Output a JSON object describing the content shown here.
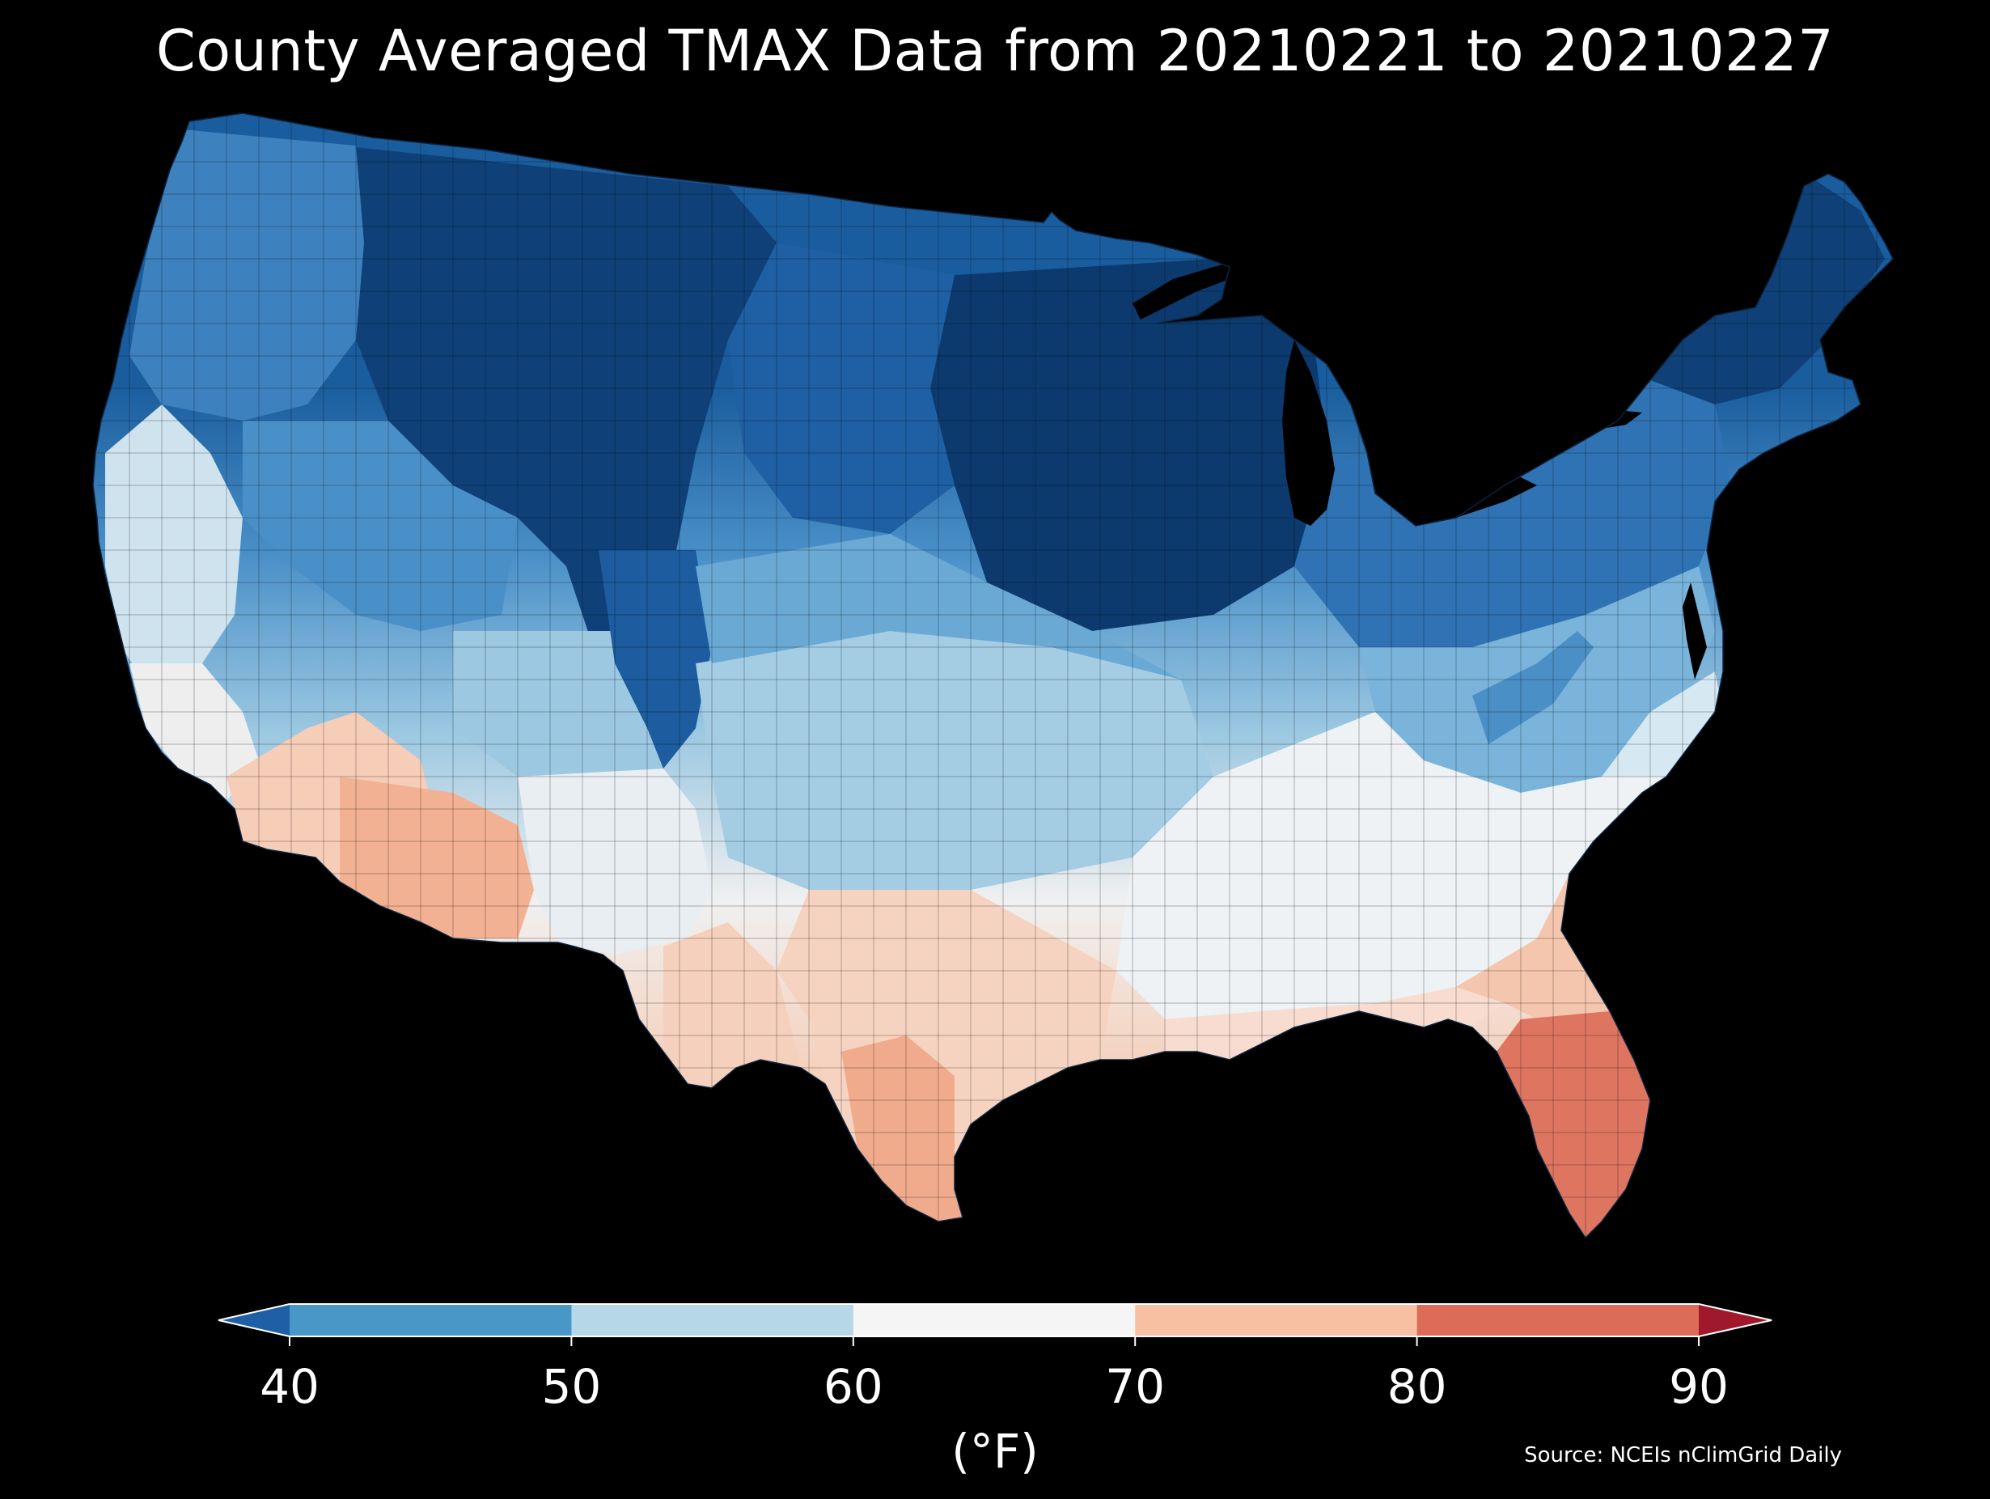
{
  "title": "County Averaged TMAX Data from 20210221 to 20210227",
  "legend": {
    "ticks": [
      "40",
      "50",
      "60",
      "70",
      "80",
      "90"
    ],
    "unit": "(°F)",
    "bins": [
      {
        "range": "< 40",
        "color": "#1f5fa6"
      },
      {
        "range": "40-50",
        "color": "#4997c6"
      },
      {
        "range": "50-60",
        "color": "#b6d7e8"
      },
      {
        "range": "60-70",
        "color": "#f5f5f5"
      },
      {
        "range": "70-80",
        "color": "#f8c0a2"
      },
      {
        "range": "80-90",
        "color": "#dc6b58"
      },
      {
        "range": "> 90",
        "color": "#a0182c"
      }
    ]
  },
  "source": "Source: NCEIs nClimGrid Daily",
  "map": {
    "region": "contiguous-united-states",
    "variable": "TMAX",
    "colors": {
      "deep": "#0d3d70",
      "dark": "#175ca0",
      "mid": "#2f7abd",
      "medium": "#5a9fcf",
      "light": "#97c6e1",
      "pale": "#cde3f0",
      "white": "#f3f2f1",
      "peach": "#f7d2bd",
      "salmon": "#f0a684",
      "red": "#dd6f58",
      "background": "#000000"
    }
  }
}
